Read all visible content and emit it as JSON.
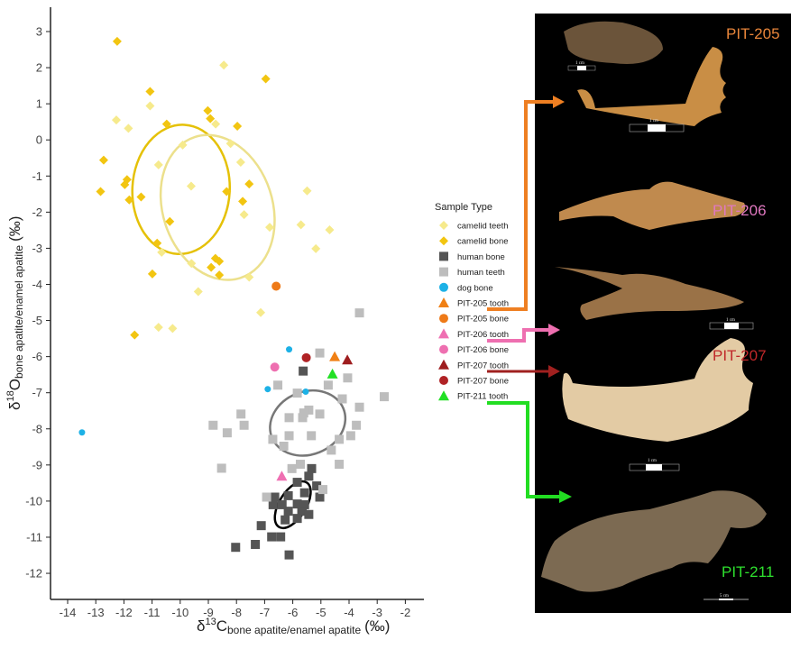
{
  "chart_data": {
    "type": "scatter",
    "xlabel": {
      "main": "δ",
      "sup": "13",
      "letter": "C",
      "sub": "bone apatite/enamel apatite",
      "unit": "(‰)"
    },
    "ylabel": {
      "main": "δ",
      "sup": "18",
      "letter": "O",
      "sub": "bone apatite/enamel apatite",
      "unit": "(‰)"
    },
    "xlim": [
      -14.6,
      -1.6
    ],
    "ylim": [
      -12.6,
      3.7
    ],
    "xticks": [
      "-14",
      "-13",
      "-12",
      "-11",
      "-10",
      "-9",
      "-8",
      "-7",
      "-6",
      "-5",
      "-4",
      "-3",
      "-2"
    ],
    "yticks": [
      "3",
      "2",
      "1",
      "0",
      "-1",
      "-2",
      "-3",
      "-4",
      "-5",
      "-6",
      "-7",
      "-8",
      "-9",
      "-10",
      "-11",
      "-12"
    ],
    "grid": false,
    "legend": {
      "title": "Sample Type",
      "placement": "right"
    },
    "series": [
      {
        "name": "camelid teeth",
        "shape": "diamond",
        "color": "#f6ea8c",
        "points": [
          [
            -8.45,
            2.07
          ],
          [
            -11.07,
            0.94
          ],
          [
            -12.27,
            0.55
          ],
          [
            -11.84,
            0.32
          ],
          [
            -8.74,
            0.44
          ],
          [
            -9.91,
            -0.14
          ],
          [
            -8.21,
            -0.1
          ],
          [
            -10.77,
            -0.69
          ],
          [
            -7.85,
            -0.62
          ],
          [
            -9.61,
            -1.28
          ],
          [
            -5.49,
            -1.41
          ],
          [
            -7.73,
            -2.07
          ],
          [
            -6.82,
            -2.42
          ],
          [
            -5.71,
            -2.35
          ],
          [
            -4.69,
            -2.49
          ],
          [
            -5.18,
            -3.01
          ],
          [
            -10.66,
            -3.11
          ],
          [
            -9.6,
            -3.42
          ],
          [
            -7.55,
            -3.8
          ],
          [
            -9.36,
            -4.2
          ],
          [
            -7.14,
            -4.78
          ],
          [
            -10.77,
            -5.19
          ],
          [
            -10.27,
            -5.22
          ]
        ]
      },
      {
        "name": "camelid bone",
        "shape": "diamond",
        "color": "#f2c511",
        "points": [
          [
            -12.24,
            2.73
          ],
          [
            -6.96,
            1.69
          ],
          [
            -11.07,
            1.34
          ],
          [
            -9.02,
            0.81
          ],
          [
            -8.93,
            0.59
          ],
          [
            -7.97,
            0.38
          ],
          [
            -10.48,
            0.44
          ],
          [
            -12.72,
            -0.56
          ],
          [
            -11.89,
            -1.1
          ],
          [
            -11.97,
            -1.24
          ],
          [
            -12.83,
            -1.43
          ],
          [
            -11.81,
            -1.66
          ],
          [
            -11.39,
            -1.58
          ],
          [
            -8.35,
            -1.43
          ],
          [
            -7.55,
            -1.22
          ],
          [
            -7.78,
            -1.7
          ],
          [
            -10.37,
            -2.26
          ],
          [
            -10.82,
            -2.86
          ],
          [
            -8.75,
            -3.28
          ],
          [
            -8.61,
            -3.36
          ],
          [
            -8.9,
            -3.53
          ],
          [
            -8.61,
            -3.74
          ],
          [
            -10.99,
            -3.71
          ],
          [
            -11.62,
            -5.4
          ]
        ]
      },
      {
        "name": "human bone",
        "shape": "square",
        "color": "#555555",
        "points": [
          [
            -5.63,
            -6.4
          ],
          [
            -5.33,
            -9.1
          ],
          [
            -5.43,
            -9.31
          ],
          [
            -5.84,
            -9.48
          ],
          [
            -5.15,
            -9.58
          ],
          [
            -6.64,
            -9.89
          ],
          [
            -6.16,
            -9.85
          ],
          [
            -5.58,
            -9.77
          ],
          [
            -5.04,
            -9.89
          ],
          [
            -6.7,
            -10.1
          ],
          [
            -6.38,
            -10.1
          ],
          [
            -5.84,
            -10.08
          ],
          [
            -5.58,
            -10.1
          ],
          [
            -6.16,
            -10.28
          ],
          [
            -5.68,
            -10.28
          ],
          [
            -5.43,
            -10.37
          ],
          [
            -6.27,
            -10.52
          ],
          [
            -5.84,
            -10.48
          ],
          [
            -7.12,
            -10.68
          ],
          [
            -6.75,
            -10.99
          ],
          [
            -6.43,
            -10.99
          ],
          [
            -8.03,
            -11.28
          ],
          [
            -7.33,
            -11.2
          ],
          [
            -6.13,
            -11.49
          ]
        ]
      },
      {
        "name": "human teeth",
        "shape": "square",
        "color": "#bdbdbd",
        "points": [
          [
            -3.63,
            -4.79
          ],
          [
            -5.04,
            -5.9
          ],
          [
            -4.05,
            -6.59
          ],
          [
            -6.53,
            -6.79
          ],
          [
            -4.74,
            -6.79
          ],
          [
            -5.84,
            -7.01
          ],
          [
            -2.75,
            -7.11
          ],
          [
            -4.24,
            -7.17
          ],
          [
            -3.63,
            -7.4
          ],
          [
            -7.84,
            -7.59
          ],
          [
            -5.43,
            -7.48
          ],
          [
            -5.61,
            -7.56
          ],
          [
            -5.04,
            -7.59
          ],
          [
            -6.13,
            -7.69
          ],
          [
            -5.65,
            -7.69
          ],
          [
            -8.83,
            -7.9
          ],
          [
            -7.73,
            -7.9
          ],
          [
            -3.74,
            -7.9
          ],
          [
            -8.33,
            -8.11
          ],
          [
            -6.13,
            -8.19
          ],
          [
            -5.34,
            -8.19
          ],
          [
            -3.94,
            -8.19
          ],
          [
            -6.71,
            -8.29
          ],
          [
            -4.35,
            -8.29
          ],
          [
            -6.32,
            -8.48
          ],
          [
            -4.63,
            -8.59
          ],
          [
            -5.73,
            -8.98
          ],
          [
            -4.35,
            -8.98
          ],
          [
            -6.03,
            -9.1
          ],
          [
            -8.53,
            -9.09
          ],
          [
            -4.93,
            -9.68
          ],
          [
            -6.93,
            -9.89
          ]
        ]
      },
      {
        "name": "dog bone",
        "shape": "circle-small",
        "color": "#1db1e6",
        "points": [
          [
            -13.49,
            -8.1
          ],
          [
            -6.13,
            -5.8
          ],
          [
            -6.89,
            -6.9
          ],
          [
            -5.54,
            -6.97
          ]
        ]
      },
      {
        "name": "PIT-205 tooth",
        "shape": "triangle",
        "color": "#f08015",
        "points": [
          [
            -4.51,
            -6.0
          ]
        ]
      },
      {
        "name": "PIT-205 bone",
        "shape": "circle",
        "color": "#ee7a18",
        "points": [
          [
            -6.59,
            -4.05
          ]
        ]
      },
      {
        "name": "PIT-206 tooth",
        "shape": "triangle",
        "color": "#ef6fb2",
        "points": [
          [
            -6.39,
            -9.31
          ]
        ]
      },
      {
        "name": "PIT-206 bone",
        "shape": "circle",
        "color": "#ee6fb0",
        "points": [
          [
            -6.64,
            -6.29
          ]
        ]
      },
      {
        "name": "PIT-207 tooth",
        "shape": "triangle",
        "color": "#9e1d1f",
        "points": [
          [
            -4.06,
            -6.09
          ]
        ]
      },
      {
        "name": "PIT-207 bone",
        "shape": "circle",
        "color": "#b02225",
        "points": [
          [
            -5.52,
            -6.03
          ]
        ]
      },
      {
        "name": "PIT-211 tooth",
        "shape": "triangle",
        "color": "#22e025",
        "points": [
          [
            -4.59,
            -6.48
          ]
        ]
      }
    ],
    "ellipses": [
      {
        "group": "camelid bone",
        "color": "#e5c107",
        "center": [
          -9.97,
          -1.37
        ],
        "rx": 1.73,
        "ry": 1.79,
        "angle_deg": 3
      },
      {
        "group": "camelid teeth",
        "color": "#ece08c",
        "center": [
          -8.67,
          -1.87
        ],
        "rx": 1.95,
        "ry": 2.05,
        "angle_deg": -18
      },
      {
        "group": "human teeth",
        "color": "#777777",
        "center": [
          -5.47,
          -7.84
        ],
        "rx": 1.37,
        "ry": 0.87,
        "angle_deg": -22
      },
      {
        "group": "human bone",
        "color": "#000000",
        "center": [
          -6.0,
          -10.1
        ],
        "rx": 0.93,
        "ry": 0.37,
        "angle_deg": -58
      }
    ]
  },
  "specimens": [
    {
      "label": "PIT-205",
      "color": "#e8853a",
      "scales": [
        "1 cm",
        "1 cm"
      ]
    },
    {
      "label": "PIT-206",
      "color": "#e078c0",
      "scales": [
        "1 cm"
      ]
    },
    {
      "label": "PIT-207",
      "color": "#c0282a",
      "scales": [
        "1 cm"
      ]
    },
    {
      "label": "PIT-211",
      "color": "#2ee02e",
      "scales": [
        "5 cm"
      ]
    }
  ],
  "connectors": [
    {
      "from": "PIT-205 tooth",
      "color": "#ee7f22"
    },
    {
      "from": "PIT-206 tooth",
      "color": "#ee6fb0"
    },
    {
      "from": "PIT-207 tooth",
      "color": "#a0201f"
    },
    {
      "from": "PIT-211 tooth",
      "color": "#22dd22"
    }
  ]
}
